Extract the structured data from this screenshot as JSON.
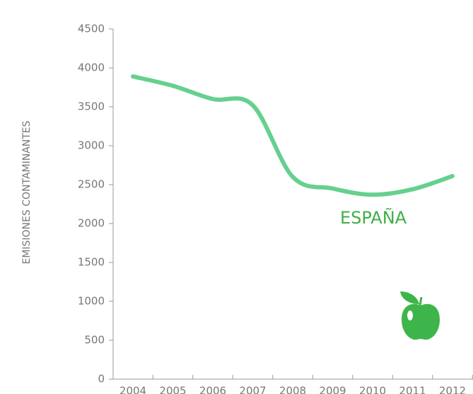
{
  "chart_data": {
    "type": "line",
    "y_label": "EMISIONES CONTAMINANTES",
    "annotation": "ESPAÑA",
    "categories": [
      "2004",
      "2005",
      "2006",
      "2007",
      "2008",
      "2009",
      "2010",
      "2011",
      "2012"
    ],
    "series": [
      {
        "name": "ESPAÑA",
        "color": "#66d08f",
        "values": [
          3890,
          3770,
          3600,
          3520,
          2600,
          2450,
          2370,
          2440,
          2610
        ]
      }
    ],
    "ylim": [
      0,
      4500
    ],
    "yticks": [
      0,
      500,
      1000,
      1500,
      2000,
      2500,
      3000,
      3500,
      4000,
      4500
    ]
  }
}
